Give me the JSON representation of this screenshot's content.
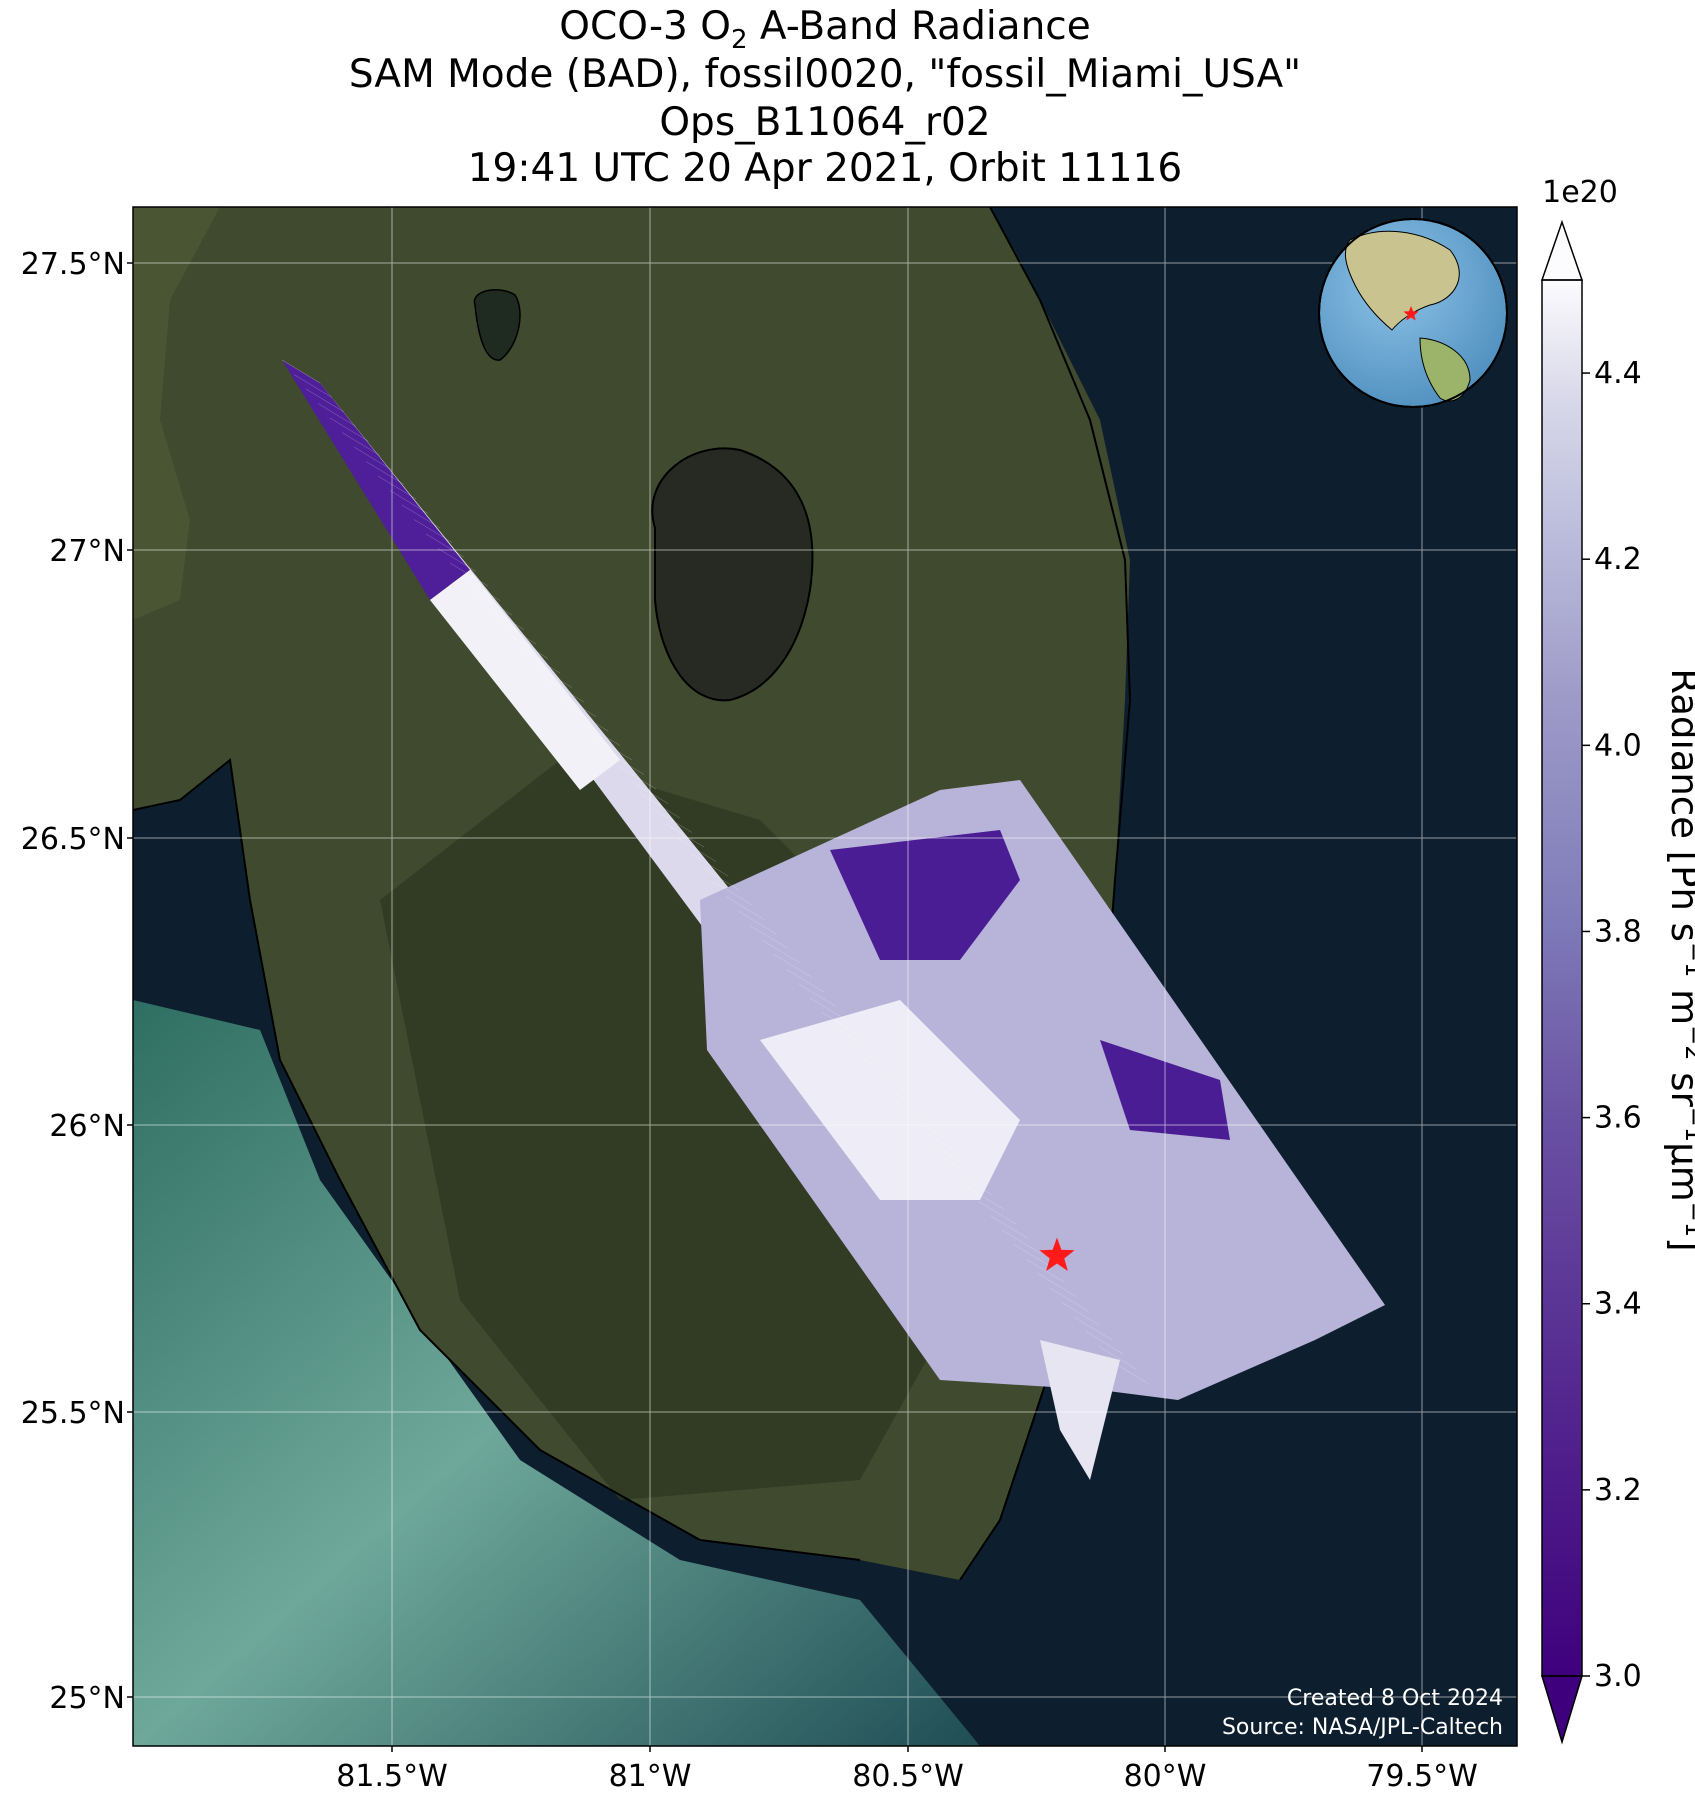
{
  "title": {
    "line1_prefix": "OCO-3 O",
    "line1_sub": "2",
    "line1_suffix": " A-Band Radiance",
    "line2": "SAM Mode (BAD), fossil0020, \"fossil_Miami_USA\"",
    "line3": "Ops_B11064_r02",
    "line4": "19:41 UTC 20 Apr 2021, Orbit 11116"
  },
  "map": {
    "lat_ticks": [
      "27.5°N",
      "27°N",
      "26.5°N",
      "26°N",
      "25.5°N",
      "25°N"
    ],
    "lon_ticks": [
      "81.5°W",
      "81°W",
      "80.5°W",
      "80°W",
      "79.5°W"
    ],
    "target_marker": "red-star",
    "footer_created": "Created 8 Oct 2024",
    "footer_source": "Source: NASA/JPL-Caltech"
  },
  "colorbar": {
    "multiplier": "1e20",
    "ticks": [
      "4.4",
      "4.2",
      "4.0",
      "3.8",
      "3.6",
      "3.4",
      "3.2",
      "3.0"
    ],
    "label_parts": [
      "Radiance [Ph s",
      "−1",
      " m",
      "−2",
      " sr",
      "−1",
      "μm",
      "−1",
      "]"
    ],
    "vmin": 3.0,
    "vmax": 4.5,
    "extend": "both",
    "colormap": "Purples_r",
    "color_low": "#3f007d",
    "color_high": "#fcfbfd"
  }
}
